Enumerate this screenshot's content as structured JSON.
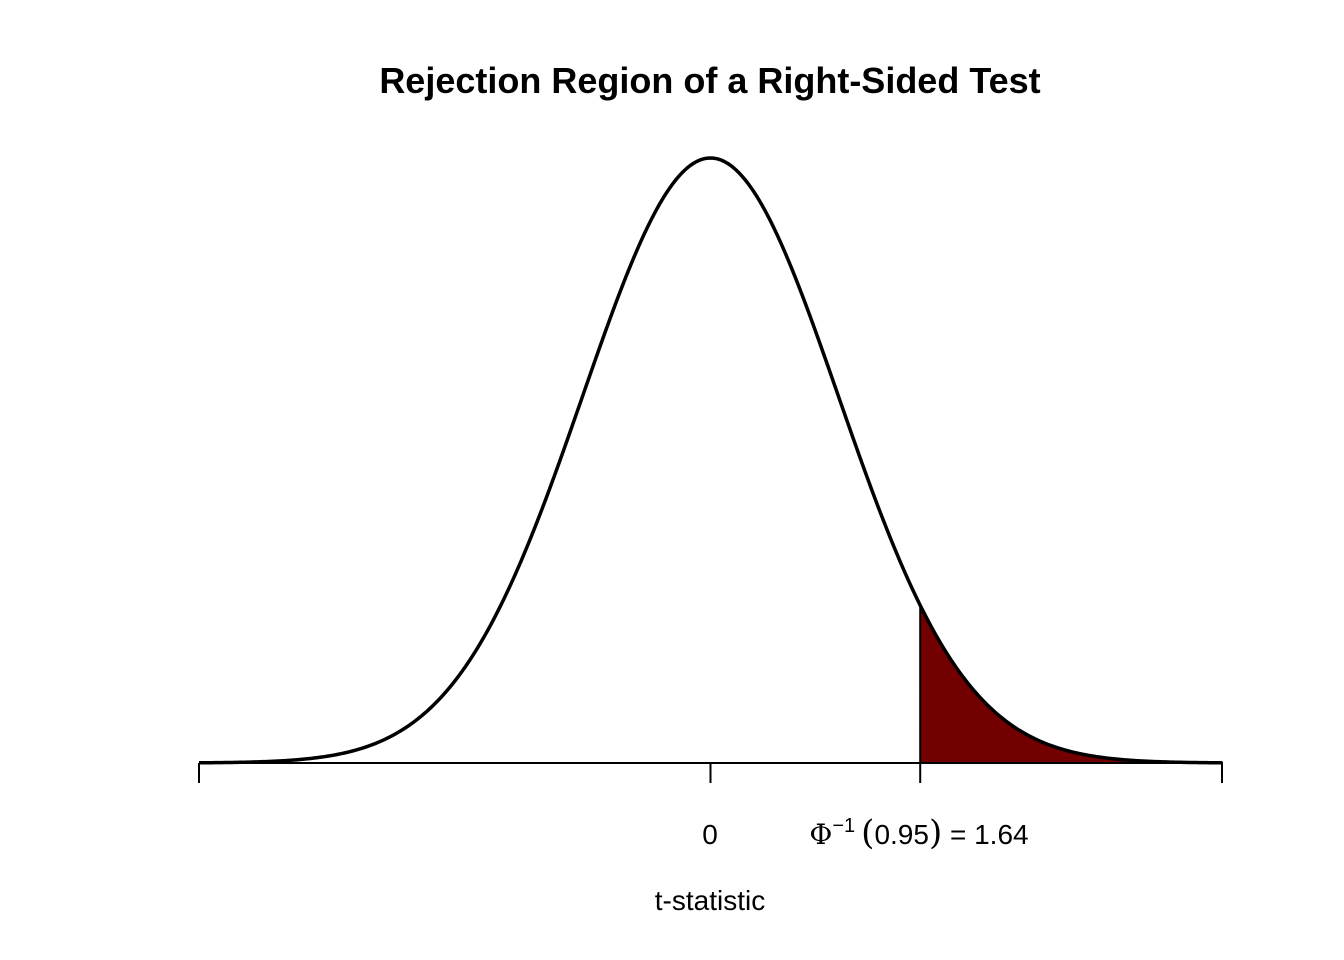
{
  "chart_data": {
    "type": "area",
    "title": "Rejection Region of a Right-Sided Test",
    "xlabel": "t-statistic",
    "ylabel": "",
    "xlim": [
      -4,
      4
    ],
    "ylim": [
      0,
      0.4
    ],
    "distribution": "standard normal density",
    "critical_value": 1.64,
    "significance_level": 0.05,
    "rejection_region": [
      1.64,
      4
    ],
    "colors": {
      "curve": "#000000",
      "rejection_fill": "#730000",
      "axis": "#000000"
    },
    "ticks": [
      {
        "x": -4,
        "label": ""
      },
      {
        "x": 0,
        "label": "0"
      },
      {
        "x": 1.64,
        "label": ""
      },
      {
        "x": 4,
        "label": ""
      }
    ],
    "critical_label": {
      "phi": "Φ",
      "exponent": "−1",
      "argument": "0.95",
      "equals": " = 1.64"
    },
    "grid": false,
    "legend": "none"
  }
}
